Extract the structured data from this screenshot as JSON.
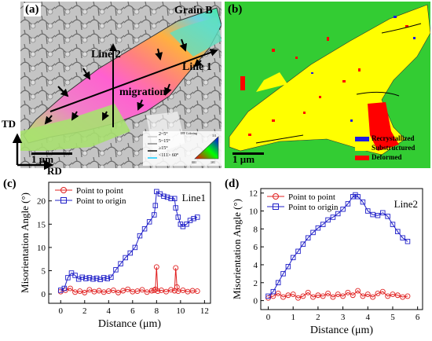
{
  "panel_a": {
    "letter": "(a)",
    "grain_label": "Grain B",
    "line1_label": "Line 1",
    "line2_label": "Line 2",
    "migration_label": "migration",
    "axis_td": "TD",
    "axis_rd": "RD",
    "scale_bar": "1 µm",
    "boundary_legend": [
      "2~5°",
      "5~15°",
      "≥15°",
      "<111> 60°"
    ],
    "boundary_colors": [
      "#c8c8c8",
      "#808080",
      "#000000",
      "#00c8ff"
    ],
    "ipf_legend_title": "IPF Coloring",
    "ipf_corners": [
      "001",
      "101",
      "111"
    ]
  },
  "panel_b": {
    "letter": "(b)",
    "scale_bar": "1 µm",
    "legend": [
      {
        "label": "Recrystallized",
        "color": "#1c1ce6"
      },
      {
        "label": "Substructured",
        "color": "#ffff00"
      },
      {
        "label": "Deformed",
        "color": "#ff0000"
      }
    ],
    "background_color": "#33cc33"
  },
  "chart_data": [
    {
      "type": "line",
      "panel": "(c)",
      "annotation": "Line1",
      "xlabel": "Distance (μm)",
      "ylabel": "Misorientation Angle (°)",
      "xlim": [
        -1,
        12.5
      ],
      "ylim": [
        -2,
        24
      ],
      "xticks": [
        0,
        2,
        4,
        6,
        8,
        10,
        12
      ],
      "yticks": [
        0,
        5,
        10,
        15,
        20
      ],
      "legend_position": "top-left",
      "series": [
        {
          "name": "Point to point",
          "color": "#e02020",
          "marker": "circle",
          "x": [
            0.0,
            0.4,
            0.8,
            1.2,
            1.6,
            2.0,
            2.4,
            2.8,
            3.2,
            3.6,
            4.0,
            4.4,
            4.8,
            5.2,
            5.6,
            6.0,
            6.4,
            6.8,
            7.2,
            7.6,
            7.8,
            7.9,
            8.0,
            8.1,
            8.4,
            8.8,
            9.2,
            9.5,
            9.6,
            9.7,
            9.8,
            10.2,
            10.6,
            11.0,
            11.4
          ],
          "y": [
            0.5,
            0.8,
            1.2,
            0.4,
            0.6,
            0.3,
            0.9,
            0.5,
            0.7,
            0.4,
            0.6,
            0.8,
            0.3,
            0.7,
            1.0,
            0.5,
            0.6,
            0.9,
            0.4,
            0.7,
            0.8,
            1.0,
            5.8,
            0.6,
            0.8,
            0.5,
            0.9,
            0.7,
            5.6,
            1.5,
            0.6,
            0.8,
            0.5,
            0.7,
            0.6
          ]
        },
        {
          "name": "Point to origin",
          "color": "#2020c8",
          "marker": "square",
          "x": [
            0.0,
            0.3,
            0.6,
            0.9,
            1.2,
            1.5,
            1.8,
            2.1,
            2.4,
            2.7,
            3.0,
            3.3,
            3.6,
            3.9,
            4.2,
            4.6,
            5.0,
            5.4,
            5.8,
            6.2,
            6.6,
            7.0,
            7.4,
            7.8,
            7.9,
            8.0,
            8.3,
            8.6,
            8.9,
            9.2,
            9.5,
            9.6,
            9.8,
            10.0,
            10.2,
            10.5,
            10.8,
            11.1,
            11.4
          ],
          "y": [
            0.8,
            1.2,
            3.5,
            4.5,
            4.0,
            3.2,
            3.6,
            3.3,
            3.5,
            3.2,
            3.4,
            3.1,
            3.5,
            3.3,
            3.6,
            5.2,
            6.5,
            7.8,
            8.8,
            10.0,
            12.5,
            14.0,
            15.5,
            17.0,
            19.0,
            22.0,
            21.5,
            21.0,
            20.8,
            20.5,
            20.5,
            18.5,
            16.5,
            15.0,
            14.5,
            15.0,
            15.8,
            16.2,
            16.5
          ]
        }
      ]
    },
    {
      "type": "line",
      "panel": "(d)",
      "annotation": "Line2",
      "xlabel": "Distance (μm)",
      "ylabel": "Misorientation Angle (°)",
      "xlim": [
        -0.3,
        6.2
      ],
      "ylim": [
        -1,
        12.5
      ],
      "xticks": [
        0,
        1,
        2,
        3,
        4,
        5,
        6
      ],
      "yticks": [
        0,
        2,
        4,
        6,
        8,
        10,
        12
      ],
      "legend_position": "top-left",
      "series": [
        {
          "name": "Point to point",
          "color": "#e02020",
          "marker": "circle",
          "x": [
            0.0,
            0.2,
            0.4,
            0.6,
            0.8,
            1.0,
            1.2,
            1.4,
            1.6,
            1.8,
            2.0,
            2.2,
            2.4,
            2.6,
            2.8,
            3.0,
            3.2,
            3.4,
            3.6,
            3.8,
            4.0,
            4.2,
            4.4,
            4.6,
            4.8,
            5.0,
            5.2,
            5.4,
            5.6
          ],
          "y": [
            0.3,
            0.5,
            0.8,
            0.4,
            0.6,
            0.7,
            0.3,
            0.5,
            0.9,
            0.4,
            0.6,
            0.5,
            0.8,
            0.4,
            0.7,
            0.5,
            0.9,
            0.6,
            1.1,
            0.5,
            0.7,
            0.4,
            0.8,
            1.0,
            0.5,
            0.7,
            0.6,
            0.4,
            0.5
          ]
        },
        {
          "name": "Point to origin",
          "color": "#2020c8",
          "marker": "square",
          "x": [
            0.0,
            0.2,
            0.4,
            0.6,
            0.8,
            1.0,
            1.2,
            1.4,
            1.6,
            1.8,
            2.0,
            2.2,
            2.4,
            2.6,
            2.8,
            3.0,
            3.2,
            3.4,
            3.5,
            3.6,
            3.8,
            4.0,
            4.2,
            4.4,
            4.6,
            4.8,
            5.0,
            5.2,
            5.4,
            5.6
          ],
          "y": [
            0.5,
            1.0,
            2.0,
            3.0,
            3.8,
            4.8,
            5.5,
            6.3,
            7.0,
            7.6,
            8.1,
            8.5,
            9.0,
            9.3,
            9.7,
            10.2,
            10.8,
            11.6,
            11.8,
            11.6,
            11.0,
            10.0,
            9.6,
            9.5,
            9.8,
            9.4,
            8.5,
            7.7,
            7.0,
            6.6
          ]
        }
      ]
    }
  ]
}
